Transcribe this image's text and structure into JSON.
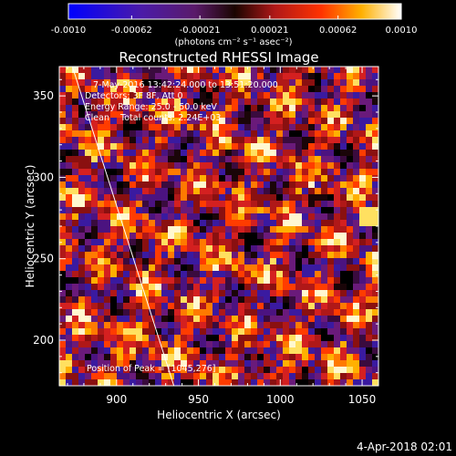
{
  "colorbar": {
    "tick_labels": [
      "-0.0010",
      "-0.00062",
      "-0.00021",
      "0.00021",
      "0.00062",
      "0.0010"
    ],
    "tick_values": [
      -0.001,
      -0.00062,
      -0.00021,
      0.00021,
      0.00062,
      0.001
    ],
    "units": "(photons cm⁻² s⁻¹ asec⁻²)",
    "range": [
      -0.001,
      0.001
    ]
  },
  "chart_data": {
    "type": "heatmap",
    "title": "Reconstructed RHESSI Image",
    "xlabel": "Heliocentric X (arcsec)",
    "ylabel": "Heliocentric Y (arcsec)",
    "xlim": [
      865,
      1060
    ],
    "ylim": [
      172,
      368
    ],
    "xticks": [
      900,
      950,
      1000,
      1050
    ],
    "yticks": [
      200,
      250,
      300,
      350
    ],
    "x_tick_labels": [
      "900",
      "950",
      "1000",
      "1050"
    ],
    "y_tick_labels": [
      "200",
      "250",
      "300",
      "350"
    ],
    "annotations": {
      "time": "7-May-2016 13:42:24.000 to 13:51:20.000",
      "detectors": "Detectors: 3F 8F, Att 0",
      "energy": "Energy Range: 25.0 - 50.0 keV",
      "clean": "Clean    Total counts: 2.24E+03",
      "peak": "Position of Peak = [1045,276]"
    },
    "limb_line": [
      [
        873,
        368
      ],
      [
        935,
        172
      ]
    ],
    "peak_position": [
      1045,
      276
    ],
    "colormap": "hot-cold (blue→purple→red→orange→yellow→white)"
  },
  "footer": {
    "timestamp": "4-Apr-2018 02:01"
  }
}
